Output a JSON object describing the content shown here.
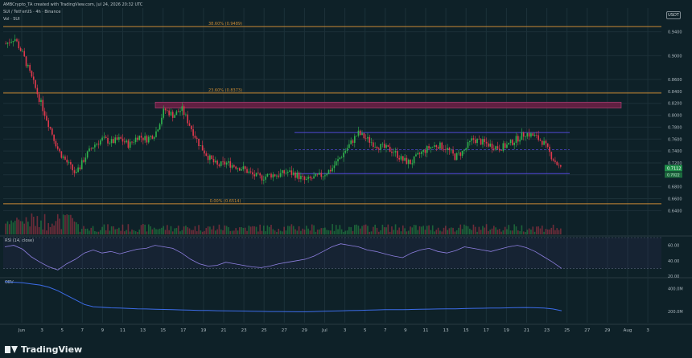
{
  "header": {
    "author_line": "AMBCrypto_TA created with TradingView.com, Jul 24, 2026 20:32 UTC",
    "symbol_line": "SUI / TetherUS · 4h · Binance",
    "volume_line": "Vol · SUI",
    "symbol_badge": "USDT"
  },
  "branding": {
    "logo_text": "TradingView"
  },
  "colors": {
    "background": "#0e2128",
    "up_candle": "#2fb34d",
    "down_candle": "#e0394d",
    "fib_line": "#c98a35",
    "supply_zone": "#6e1f45",
    "range_line": "#5148d6",
    "rsi_line": "#8e7fe0",
    "obv_line": "#3c6ce8",
    "current_price_label": "#1f8f49"
  },
  "chart_data": [
    {
      "type": "candlestick",
      "name": "price",
      "ylim": [
        0.6,
        0.98
      ],
      "y_ticks": [
        "0.9400",
        "0.9000",
        "0.8600",
        "0.8400",
        "0.8200",
        "0.8000",
        "0.7800",
        "0.7600",
        "0.7400",
        "0.7200",
        "0.7000",
        "0.6800",
        "0.6600",
        "0.6400"
      ],
      "y_tick_values": [
        0.94,
        0.9,
        0.86,
        0.84,
        0.82,
        0.8,
        0.78,
        0.76,
        0.74,
        0.72,
        0.7,
        0.68,
        0.66,
        0.64
      ],
      "x_ticks": [
        "Jun",
        "3",
        "5",
        "7",
        "9",
        "11",
        "13",
        "15",
        "17",
        "19",
        "21",
        "23",
        "25",
        "27",
        "29",
        "Jul",
        "3",
        "5",
        "7",
        "9",
        "11",
        "13",
        "15",
        "17",
        "19",
        "21",
        "23",
        "25",
        "27",
        "29",
        "Aug",
        "3"
      ],
      "close_path": [
        0.92,
        0.93,
        0.9,
        0.86,
        0.82,
        0.78,
        0.74,
        0.72,
        0.7,
        0.73,
        0.75,
        0.76,
        0.755,
        0.76,
        0.75,
        0.765,
        0.76,
        0.77,
        0.81,
        0.8,
        0.81,
        0.78,
        0.75,
        0.73,
        0.715,
        0.72,
        0.715,
        0.71,
        0.7,
        0.695,
        0.7,
        0.7,
        0.705,
        0.7,
        0.69,
        0.695,
        0.7,
        0.71,
        0.73,
        0.75,
        0.77,
        0.76,
        0.75,
        0.745,
        0.74,
        0.725,
        0.72,
        0.735,
        0.745,
        0.75,
        0.745,
        0.73,
        0.74,
        0.76,
        0.755,
        0.75,
        0.745,
        0.75,
        0.76,
        0.77,
        0.765,
        0.755,
        0.73,
        0.71
      ],
      "fib_levels": [
        {
          "label": "38.60% (0.9489)",
          "value": 0.9489
        },
        {
          "label": "23.60% (0.8373)",
          "value": 0.8373
        },
        {
          "label": "0.00% (0.6514)",
          "value": 0.6514
        }
      ],
      "supply_zone": {
        "from": 0.812,
        "to": 0.822
      },
      "range": {
        "high": 0.771,
        "mid": 0.742,
        "low": 0.702
      },
      "current_price": {
        "label": "0.7112",
        "value": 0.7112,
        "sub_label": "0.7022"
      }
    },
    {
      "type": "line",
      "name": "RSI",
      "title": "RSI (14, close)",
      "ylim": [
        20,
        70
      ],
      "y_ticks": [
        "60.00",
        "40.00",
        "20.00"
      ],
      "y_tick_values": [
        60,
        40,
        20
      ],
      "levels": [
        30,
        70
      ],
      "values": [
        58,
        60,
        55,
        45,
        38,
        32,
        28,
        36,
        42,
        50,
        54,
        50,
        52,
        49,
        52,
        55,
        56,
        60,
        58,
        56,
        50,
        42,
        36,
        33,
        34,
        38,
        36,
        34,
        32,
        31,
        33,
        36,
        38,
        40,
        42,
        46,
        52,
        58,
        62,
        60,
        58,
        54,
        52,
        49,
        46,
        44,
        50,
        54,
        56,
        52,
        50,
        53,
        58,
        56,
        54,
        52,
        55,
        58,
        60,
        57,
        52,
        45,
        38,
        30
      ]
    },
    {
      "type": "line",
      "name": "OBV",
      "title": "OBV",
      "y_ticks": [
        "400.0M",
        "200.0M"
      ],
      "y_tick_values": [
        400,
        200
      ],
      "ylim": [
        100,
        480
      ],
      "values": [
        460,
        455,
        450,
        440,
        430,
        410,
        380,
        340,
        300,
        260,
        240,
        235,
        230,
        228,
        225,
        222,
        220,
        218,
        216,
        214,
        212,
        210,
        208,
        207,
        205,
        204,
        203,
        202,
        200,
        199,
        198,
        198,
        197,
        196,
        196,
        198,
        200,
        202,
        204,
        206,
        208,
        210,
        212,
        214,
        215,
        214,
        216,
        218,
        219,
        220,
        221,
        222,
        224,
        226,
        227,
        228,
        229,
        230,
        232,
        233,
        231,
        228,
        220,
        205
      ]
    }
  ]
}
